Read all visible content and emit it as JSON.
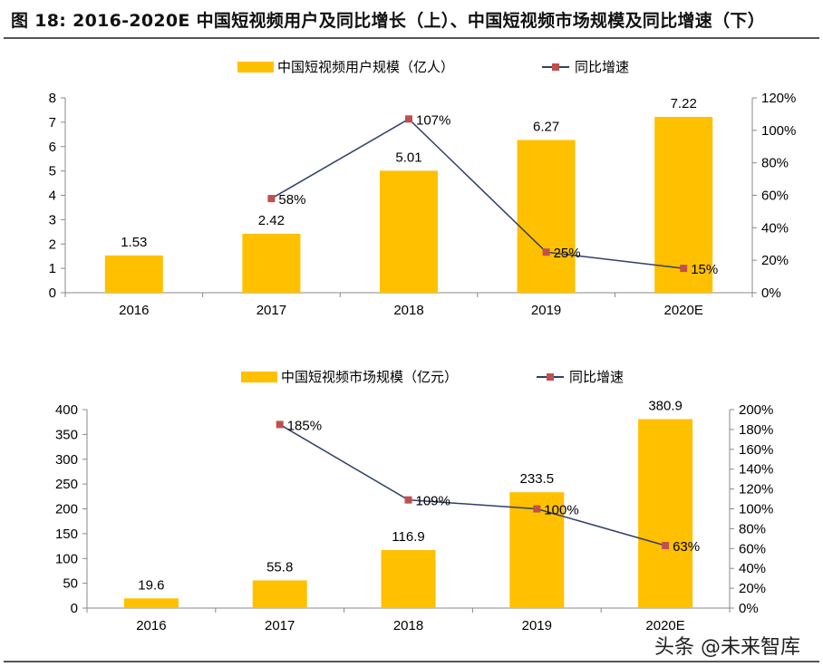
{
  "title": "图 18:  2016-2020E 中国短视频用户及同比增长（上）、中国短视频市场规模及同比增速（下）",
  "watermark": "头条 @未来智库",
  "colors": {
    "bar": "#FFC000",
    "line": "#2F3F6B",
    "marker": "#C0504D"
  },
  "chart_data": [
    {
      "type": "bar+line",
      "categories": [
        "2016",
        "2017",
        "2018",
        "2019",
        "2020E"
      ],
      "series": [
        {
          "name": "中国短视频用户规模（亿人）",
          "type": "bar",
          "axis": "left",
          "values": [
            1.53,
            2.42,
            5.01,
            6.27,
            7.22
          ],
          "labels": [
            "1.53",
            "2.42",
            "5.01",
            "6.27",
            "7.22"
          ]
        },
        {
          "name": "同比增速",
          "type": "line",
          "axis": "right",
          "values": [
            null,
            58,
            107,
            25,
            15
          ],
          "labels": [
            "",
            "58%",
            "107%",
            "25%",
            "15%"
          ]
        }
      ],
      "left_axis": {
        "min": 0,
        "max": 8,
        "step": 1,
        "ticks": [
          "0",
          "1",
          "2",
          "3",
          "4",
          "5",
          "6",
          "7",
          "8"
        ]
      },
      "right_axis": {
        "min": 0,
        "max": 120,
        "step": 20,
        "ticks": [
          "0%",
          "20%",
          "40%",
          "60%",
          "80%",
          "100%",
          "120%"
        ]
      },
      "legend": "top-center",
      "grid": false
    },
    {
      "type": "bar+line",
      "categories": [
        "2016",
        "2017",
        "2018",
        "2019",
        "2020E"
      ],
      "series": [
        {
          "name": "中国短视频市场规模（亿元）",
          "type": "bar",
          "axis": "left",
          "values": [
            19.6,
            55.8,
            116.9,
            233.5,
            380.9
          ],
          "labels": [
            "19.6",
            "55.8",
            "116.9",
            "233.5",
            "380.9"
          ]
        },
        {
          "name": "同比增速",
          "type": "line",
          "axis": "right",
          "values": [
            null,
            185,
            109,
            100,
            63
          ],
          "labels": [
            "",
            "185%",
            "109%",
            "100%",
            "63%"
          ]
        }
      ],
      "left_axis": {
        "min": 0,
        "max": 400,
        "step": 50,
        "ticks": [
          "0",
          "50",
          "100",
          "150",
          "200",
          "250",
          "300",
          "350",
          "400"
        ]
      },
      "right_axis": {
        "min": 0,
        "max": 200,
        "step": 20,
        "ticks": [
          "0%",
          "20%",
          "40%",
          "60%",
          "80%",
          "100%",
          "120%",
          "140%",
          "160%",
          "180%",
          "200%"
        ]
      },
      "legend": "top-center",
      "grid": false
    }
  ]
}
